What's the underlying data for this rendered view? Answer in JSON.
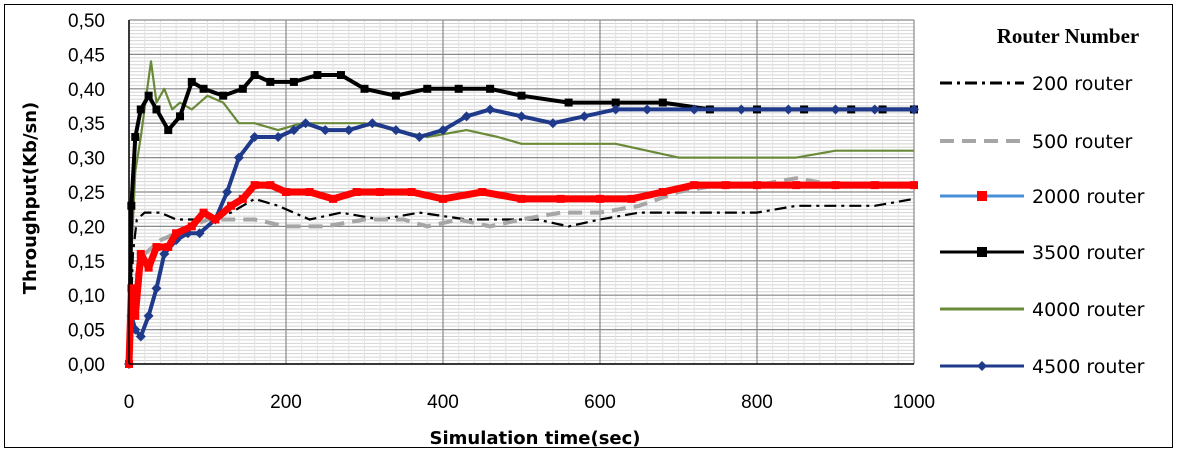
{
  "chart_data": {
    "type": "line",
    "title": "",
    "xlabel": "Simulation time(sec)",
    "ylabel": "Throughput(Kb/sn)",
    "xlim": [
      0,
      1000
    ],
    "ylim": [
      0,
      0.5
    ],
    "x_ticks": [
      "0",
      "200",
      "400",
      "600",
      "800",
      "1000"
    ],
    "y_ticks": [
      "0,00",
      "0,05",
      "0,10",
      "0,15",
      "0,20",
      "0,25",
      "0,30",
      "0,35",
      "0,40",
      "0,45",
      "0,50"
    ],
    "grid": true,
    "legend_position": "right",
    "legend_title": "Router Number",
    "series": [
      {
        "name": "200 router",
        "color": "#000000",
        "style": "dashdot",
        "marker": "none",
        "points": [
          [
            0,
            0.0
          ],
          [
            5,
            0.16
          ],
          [
            10,
            0.21
          ],
          [
            20,
            0.22
          ],
          [
            40,
            0.22
          ],
          [
            60,
            0.21
          ],
          [
            80,
            0.21
          ],
          [
            100,
            0.21
          ],
          [
            130,
            0.22
          ],
          [
            160,
            0.24
          ],
          [
            190,
            0.23
          ],
          [
            230,
            0.21
          ],
          [
            270,
            0.22
          ],
          [
            320,
            0.21
          ],
          [
            370,
            0.22
          ],
          [
            430,
            0.21
          ],
          [
            480,
            0.21
          ],
          [
            520,
            0.21
          ],
          [
            560,
            0.2
          ],
          [
            600,
            0.21
          ],
          [
            650,
            0.22
          ],
          [
            700,
            0.22
          ],
          [
            750,
            0.22
          ],
          [
            800,
            0.22
          ],
          [
            850,
            0.23
          ],
          [
            900,
            0.23
          ],
          [
            950,
            0.23
          ],
          [
            1000,
            0.24
          ]
        ]
      },
      {
        "name": "500 router",
        "color": "#a6a6a6",
        "style": "dashed",
        "marker": "none",
        "points": [
          [
            0,
            0.0
          ],
          [
            5,
            0.08
          ],
          [
            10,
            0.13
          ],
          [
            20,
            0.16
          ],
          [
            40,
            0.18
          ],
          [
            60,
            0.19
          ],
          [
            80,
            0.2
          ],
          [
            100,
            0.21
          ],
          [
            130,
            0.21
          ],
          [
            160,
            0.21
          ],
          [
            200,
            0.2
          ],
          [
            250,
            0.2
          ],
          [
            300,
            0.21
          ],
          [
            350,
            0.21
          ],
          [
            380,
            0.2
          ],
          [
            420,
            0.21
          ],
          [
            460,
            0.2
          ],
          [
            500,
            0.21
          ],
          [
            550,
            0.22
          ],
          [
            600,
            0.22
          ],
          [
            650,
            0.23
          ],
          [
            700,
            0.25
          ],
          [
            750,
            0.26
          ],
          [
            800,
            0.26
          ],
          [
            850,
            0.27
          ],
          [
            900,
            0.26
          ],
          [
            950,
            0.26
          ],
          [
            1000,
            0.26
          ]
        ]
      },
      {
        "name": "2000 router",
        "color": "#ff0000",
        "style": "solid",
        "marker": "square",
        "points": [
          [
            0,
            0.0
          ],
          [
            3,
            0.11
          ],
          [
            8,
            0.07
          ],
          [
            15,
            0.16
          ],
          [
            25,
            0.14
          ],
          [
            35,
            0.17
          ],
          [
            50,
            0.17
          ],
          [
            60,
            0.19
          ],
          [
            80,
            0.2
          ],
          [
            95,
            0.22
          ],
          [
            110,
            0.21
          ],
          [
            130,
            0.23
          ],
          [
            145,
            0.24
          ],
          [
            160,
            0.26
          ],
          [
            180,
            0.26
          ],
          [
            200,
            0.25
          ],
          [
            230,
            0.25
          ],
          [
            260,
            0.24
          ],
          [
            290,
            0.25
          ],
          [
            320,
            0.25
          ],
          [
            360,
            0.25
          ],
          [
            400,
            0.24
          ],
          [
            450,
            0.25
          ],
          [
            500,
            0.24
          ],
          [
            550,
            0.24
          ],
          [
            600,
            0.24
          ],
          [
            640,
            0.24
          ],
          [
            680,
            0.25
          ],
          [
            720,
            0.26
          ],
          [
            760,
            0.26
          ],
          [
            800,
            0.26
          ],
          [
            850,
            0.26
          ],
          [
            900,
            0.26
          ],
          [
            950,
            0.26
          ],
          [
            1000,
            0.26
          ]
        ]
      },
      {
        "name": "3500 router",
        "color": "#000000",
        "style": "solid",
        "marker": "square",
        "points": [
          [
            0,
            0.0
          ],
          [
            3,
            0.23
          ],
          [
            8,
            0.33
          ],
          [
            15,
            0.37
          ],
          [
            25,
            0.39
          ],
          [
            35,
            0.37
          ],
          [
            50,
            0.34
          ],
          [
            65,
            0.36
          ],
          [
            80,
            0.41
          ],
          [
            95,
            0.4
          ],
          [
            120,
            0.39
          ],
          [
            145,
            0.4
          ],
          [
            160,
            0.42
          ],
          [
            180,
            0.41
          ],
          [
            210,
            0.41
          ],
          [
            240,
            0.42
          ],
          [
            270,
            0.42
          ],
          [
            300,
            0.4
          ],
          [
            340,
            0.39
          ],
          [
            380,
            0.4
          ],
          [
            420,
            0.4
          ],
          [
            460,
            0.4
          ],
          [
            500,
            0.39
          ],
          [
            560,
            0.38
          ],
          [
            620,
            0.38
          ],
          [
            680,
            0.38
          ],
          [
            740,
            0.37
          ],
          [
            800,
            0.37
          ],
          [
            860,
            0.37
          ],
          [
            920,
            0.37
          ],
          [
            960,
            0.37
          ],
          [
            1000,
            0.37
          ]
        ]
      },
      {
        "name": "4000 router",
        "color": "#6a8a3a",
        "style": "solid",
        "marker": "none",
        "points": [
          [
            0,
            0.0
          ],
          [
            3,
            0.16
          ],
          [
            8,
            0.28
          ],
          [
            15,
            0.33
          ],
          [
            22,
            0.39
          ],
          [
            28,
            0.44
          ],
          [
            35,
            0.38
          ],
          [
            45,
            0.4
          ],
          [
            55,
            0.37
          ],
          [
            65,
            0.38
          ],
          [
            80,
            0.37
          ],
          [
            100,
            0.39
          ],
          [
            120,
            0.38
          ],
          [
            140,
            0.35
          ],
          [
            160,
            0.35
          ],
          [
            190,
            0.34
          ],
          [
            220,
            0.35
          ],
          [
            260,
            0.35
          ],
          [
            300,
            0.35
          ],
          [
            340,
            0.34
          ],
          [
            380,
            0.33
          ],
          [
            430,
            0.34
          ],
          [
            470,
            0.33
          ],
          [
            500,
            0.32
          ],
          [
            540,
            0.32
          ],
          [
            580,
            0.32
          ],
          [
            620,
            0.32
          ],
          [
            660,
            0.31
          ],
          [
            700,
            0.3
          ],
          [
            750,
            0.3
          ],
          [
            800,
            0.3
          ],
          [
            850,
            0.3
          ],
          [
            900,
            0.31
          ],
          [
            950,
            0.31
          ],
          [
            1000,
            0.31
          ]
        ]
      },
      {
        "name": "4500 router",
        "color": "#1f3a8a",
        "style": "solid",
        "marker": "diamond",
        "points": [
          [
            0,
            0.0
          ],
          [
            3,
            0.07
          ],
          [
            8,
            0.05
          ],
          [
            15,
            0.04
          ],
          [
            25,
            0.07
          ],
          [
            35,
            0.11
          ],
          [
            45,
            0.16
          ],
          [
            60,
            0.18
          ],
          [
            75,
            0.19
          ],
          [
            90,
            0.19
          ],
          [
            110,
            0.21
          ],
          [
            125,
            0.25
          ],
          [
            140,
            0.3
          ],
          [
            160,
            0.33
          ],
          [
            190,
            0.33
          ],
          [
            210,
            0.34
          ],
          [
            225,
            0.35
          ],
          [
            250,
            0.34
          ],
          [
            280,
            0.34
          ],
          [
            310,
            0.35
          ],
          [
            340,
            0.34
          ],
          [
            370,
            0.33
          ],
          [
            400,
            0.34
          ],
          [
            430,
            0.36
          ],
          [
            460,
            0.37
          ],
          [
            500,
            0.36
          ],
          [
            540,
            0.35
          ],
          [
            580,
            0.36
          ],
          [
            620,
            0.37
          ],
          [
            660,
            0.37
          ],
          [
            720,
            0.37
          ],
          [
            780,
            0.37
          ],
          [
            840,
            0.37
          ],
          [
            900,
            0.37
          ],
          [
            950,
            0.37
          ],
          [
            1000,
            0.37
          ]
        ]
      }
    ]
  }
}
